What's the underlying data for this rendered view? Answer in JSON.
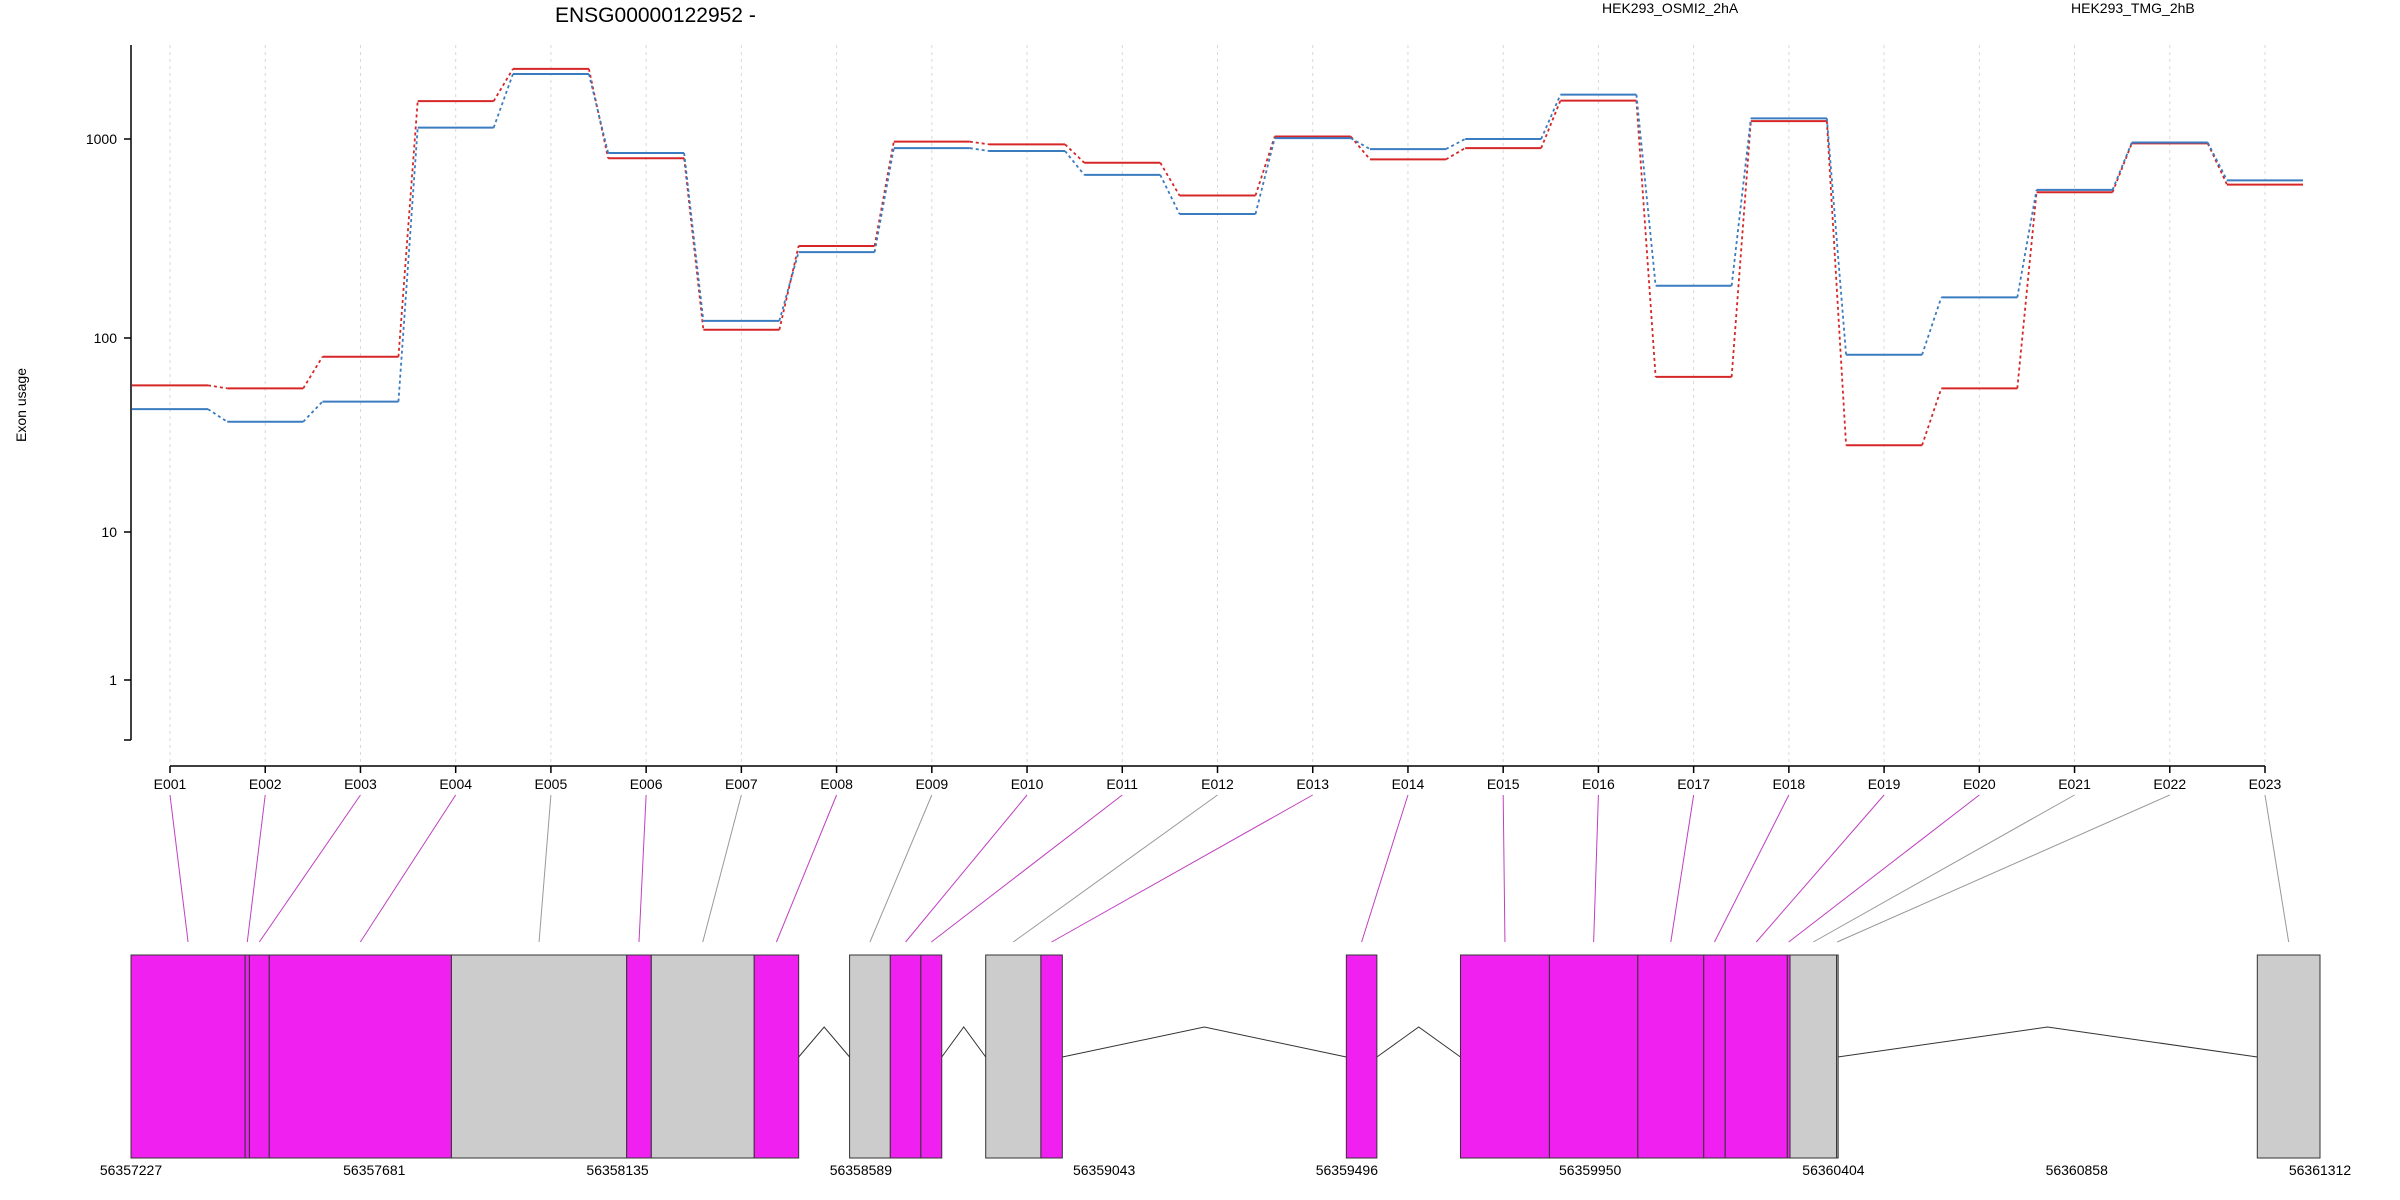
{
  "title": "ENSG00000122952 -",
  "legend": [
    {
      "name": "HEK293_OSMI2_2hA",
      "color": "#d62728"
    },
    {
      "name": "HEK293_TMG_2hB",
      "color": "#3b7bbf"
    }
  ],
  "colors": {
    "significant_exon": "#f020f0",
    "other_exon": "#cccccc",
    "connector_significant": "#c040c0",
    "connector_other": "#999999"
  },
  "chart_data": [
    {
      "type": "line",
      "title": "ENSG00000122952 -",
      "ylabel": "Exon usage",
      "yscale": "log",
      "ylim": [
        0.4,
        3000
      ],
      "yticks": [
        1,
        10,
        100,
        1000
      ],
      "ytick_labels": [
        "1",
        "10",
        "100",
        "1000"
      ],
      "categories": [
        "E001",
        "E002",
        "E003",
        "E004",
        "E005",
        "E006",
        "E007",
        "E008",
        "E009",
        "E010",
        "E011",
        "E012",
        "E013",
        "E014",
        "E015",
        "E016",
        "E017",
        "E018",
        "E019",
        "E020",
        "E021",
        "E022",
        "E023"
      ],
      "series": [
        {
          "name": "HEK293_OSMI2_2hA",
          "color": "#d62728",
          "values": [
            57,
            55,
            80,
            1550,
            2250,
            800,
            110,
            290,
            970,
            940,
            760,
            520,
            1030,
            790,
            900,
            1560,
            63,
            1230,
            28,
            55,
            540,
            950,
            590
          ]
        },
        {
          "name": "HEK293_TMG_2hB",
          "color": "#3b7bbf",
          "values": [
            43,
            37,
            47,
            1140,
            2120,
            850,
            122,
            270,
            900,
            870,
            660,
            420,
            1010,
            890,
            1000,
            1670,
            183,
            1270,
            82,
            160,
            555,
            960,
            620
          ]
        }
      ],
      "grid": "vertical dotted",
      "legend_position": "top-right"
    },
    {
      "type": "gene-model",
      "xlim": [
        56357227,
        56361312
      ],
      "xticks": [
        56357227,
        56357681,
        56358135,
        56358589,
        56359043,
        56359496,
        56359950,
        56360404,
        56360858,
        56361312
      ],
      "xtick_labels": [
        "56357227",
        "56357681",
        "56358135",
        "56358589",
        "56359043",
        "56359496",
        "56359950",
        "56360404",
        "56360858",
        "56361312"
      ],
      "exons": [
        {
          "id": "E001",
          "start": 56357227,
          "end": 56357440,
          "significant": true
        },
        {
          "id": "E002",
          "start": 56357440,
          "end": 56357448,
          "significant": true
        },
        {
          "id": "E003",
          "start": 56357448,
          "end": 56357485,
          "significant": true
        },
        {
          "id": "E004",
          "start": 56357485,
          "end": 56357825,
          "significant": true
        },
        {
          "id": "E005",
          "start": 56357825,
          "end": 56358152,
          "significant": false
        },
        {
          "id": "E006",
          "start": 56358152,
          "end": 56358198,
          "significant": true
        },
        {
          "id": "E007",
          "start": 56358198,
          "end": 56358390,
          "significant": false
        },
        {
          "id": "E008",
          "start": 56358390,
          "end": 56358473,
          "significant": true
        },
        {
          "id": "E009",
          "start": 56358568,
          "end": 56358644,
          "significant": false
        },
        {
          "id": "E010",
          "start": 56358644,
          "end": 56358701,
          "significant": true
        },
        {
          "id": "E011",
          "start": 56358701,
          "end": 56358740,
          "significant": true
        },
        {
          "id": "E012",
          "start": 56358822,
          "end": 56358925,
          "significant": false
        },
        {
          "id": "E013",
          "start": 56358925,
          "end": 56358965,
          "significant": true
        },
        {
          "id": "E014",
          "start": 56359495,
          "end": 56359552,
          "significant": true
        },
        {
          "id": "E015",
          "start": 56359708,
          "end": 56359874,
          "significant": true
        },
        {
          "id": "E016",
          "start": 56359874,
          "end": 56360039,
          "significant": true
        },
        {
          "id": "E017",
          "start": 56360039,
          "end": 56360162,
          "significant": true
        },
        {
          "id": "E018",
          "start": 56360162,
          "end": 56360202,
          "significant": true
        },
        {
          "id": "E019",
          "start": 56360202,
          "end": 56360318,
          "significant": true
        },
        {
          "id": "E020",
          "start": 56360318,
          "end": 56360323,
          "significant": true
        },
        {
          "id": "E021",
          "start": 56360323,
          "end": 56360410,
          "significant": false
        },
        {
          "id": "E022",
          "start": 56360410,
          "end": 56360412,
          "significant": false
        },
        {
          "id": "E023",
          "start": 56361195,
          "end": 56361312,
          "significant": false
        }
      ]
    }
  ]
}
